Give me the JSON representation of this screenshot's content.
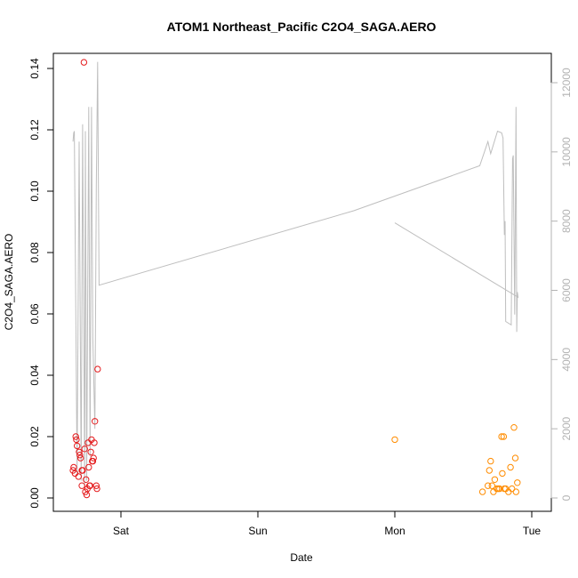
{
  "chart_data": {
    "type": "scatter",
    "title": "ATOM1 Northeast_Pacific C2O4_SAGA.AERO",
    "xlabel": "Date",
    "ylabel": "C2O4_SAGA.AERO",
    "x_ticks": [
      "Sat",
      "Sun",
      "Mon",
      "Tue"
    ],
    "ylim": [
      0,
      0.14
    ],
    "y_ticks": [
      "0.00",
      "0.02",
      "0.04",
      "0.06",
      "0.08",
      "0.10",
      "0.12",
      "0.14"
    ],
    "y2_ticks": [
      "0",
      "2000",
      "4000",
      "6000",
      "8000",
      "10000",
      "12000"
    ],
    "y2lim": [
      0,
      12500
    ],
    "colors": {
      "series1": "#e41a1c",
      "series2": "#ff8c00",
      "altitude": "#bebebe",
      "axis": "#000000",
      "axis_right": "#b3b3b3"
    },
    "series": [
      {
        "color": "#e41a1c",
        "points": [
          [
            -0.35,
            0.009
          ],
          [
            -0.345,
            0.01
          ],
          [
            -0.335,
            0.008
          ],
          [
            -0.33,
            0.02
          ],
          [
            -0.325,
            0.019
          ],
          [
            -0.32,
            0.017
          ],
          [
            -0.31,
            0.007
          ],
          [
            -0.305,
            0.015
          ],
          [
            -0.3,
            0.014
          ],
          [
            -0.295,
            0.013
          ],
          [
            -0.285,
            0.009
          ],
          [
            -0.285,
            0.004
          ],
          [
            -0.28,
            0.009
          ],
          [
            -0.27,
            0.142
          ],
          [
            -0.265,
            0.016
          ],
          [
            -0.26,
            0.002
          ],
          [
            -0.255,
            0.006
          ],
          [
            -0.25,
            0.001
          ],
          [
            -0.245,
            0.003
          ],
          [
            -0.24,
            0.018
          ],
          [
            -0.235,
            0.01
          ],
          [
            -0.23,
            0.004
          ],
          [
            -0.225,
            0.004
          ],
          [
            -0.22,
            0.015
          ],
          [
            -0.215,
            0.019
          ],
          [
            -0.21,
            0.012
          ],
          [
            -0.205,
            0.012
          ],
          [
            -0.2,
            0.013
          ],
          [
            -0.195,
            0.018
          ],
          [
            -0.19,
            0.025
          ],
          [
            -0.18,
            0.004
          ],
          [
            -0.175,
            0.003
          ],
          [
            -0.17,
            0.042
          ]
        ]
      },
      {
        "color": "#ff8c00",
        "points": [
          [
            2.0,
            0.019
          ],
          [
            2.64,
            0.002
          ],
          [
            2.68,
            0.004
          ],
          [
            2.69,
            0.009
          ],
          [
            2.7,
            0.012
          ],
          [
            2.71,
            0.004
          ],
          [
            2.72,
            0.002
          ],
          [
            2.73,
            0.006
          ],
          [
            2.745,
            0.003
          ],
          [
            2.755,
            0.003
          ],
          [
            2.765,
            0.003
          ],
          [
            2.78,
            0.02
          ],
          [
            2.785,
            0.008
          ],
          [
            2.795,
            0.02
          ],
          [
            2.8,
            0.003
          ],
          [
            2.81,
            0.003
          ],
          [
            2.83,
            0.002
          ],
          [
            2.845,
            0.01
          ],
          [
            2.855,
            0.003
          ],
          [
            2.87,
            0.023
          ],
          [
            2.88,
            0.013
          ],
          [
            2.885,
            0.002
          ],
          [
            2.895,
            0.005
          ]
        ]
      }
    ],
    "altitude_track": [
      [
        -0.35,
        10300
      ],
      [
        -0.345,
        10550
      ],
      [
        -0.34,
        10600
      ],
      [
        -0.32,
        700
      ],
      [
        -0.305,
        10300
      ],
      [
        -0.29,
        500
      ],
      [
        -0.28,
        10800
      ],
      [
        -0.265,
        300
      ],
      [
        -0.26,
        10600
      ],
      [
        -0.25,
        500
      ],
      [
        -0.235,
        11300
      ],
      [
        -0.225,
        1200
      ],
      [
        -0.215,
        11300
      ],
      [
        -0.205,
        4600
      ],
      [
        -0.19,
        2000
      ],
      [
        -0.18,
        9000
      ],
      [
        -0.17,
        12600
      ],
      [
        -0.16,
        6150
      ],
      [
        1.7,
        8300
      ],
      [
        2.62,
        9600
      ],
      [
        2.68,
        10300
      ],
      [
        2.7,
        9950
      ],
      [
        2.75,
        10600
      ],
      [
        2.78,
        10550
      ],
      [
        2.79,
        10400
      ],
      [
        2.8,
        7600
      ],
      [
        2.805,
        8000
      ],
      [
        2.81,
        5100
      ],
      [
        2.85,
        5000
      ],
      [
        2.86,
        9800
      ],
      [
        2.865,
        9900
      ],
      [
        2.875,
        5300
      ],
      [
        2.885,
        11300
      ],
      [
        2.89,
        4800
      ],
      [
        2.895,
        5950
      ],
      [
        2.9,
        5800
      ],
      [
        2.0,
        7950
      ]
    ]
  }
}
